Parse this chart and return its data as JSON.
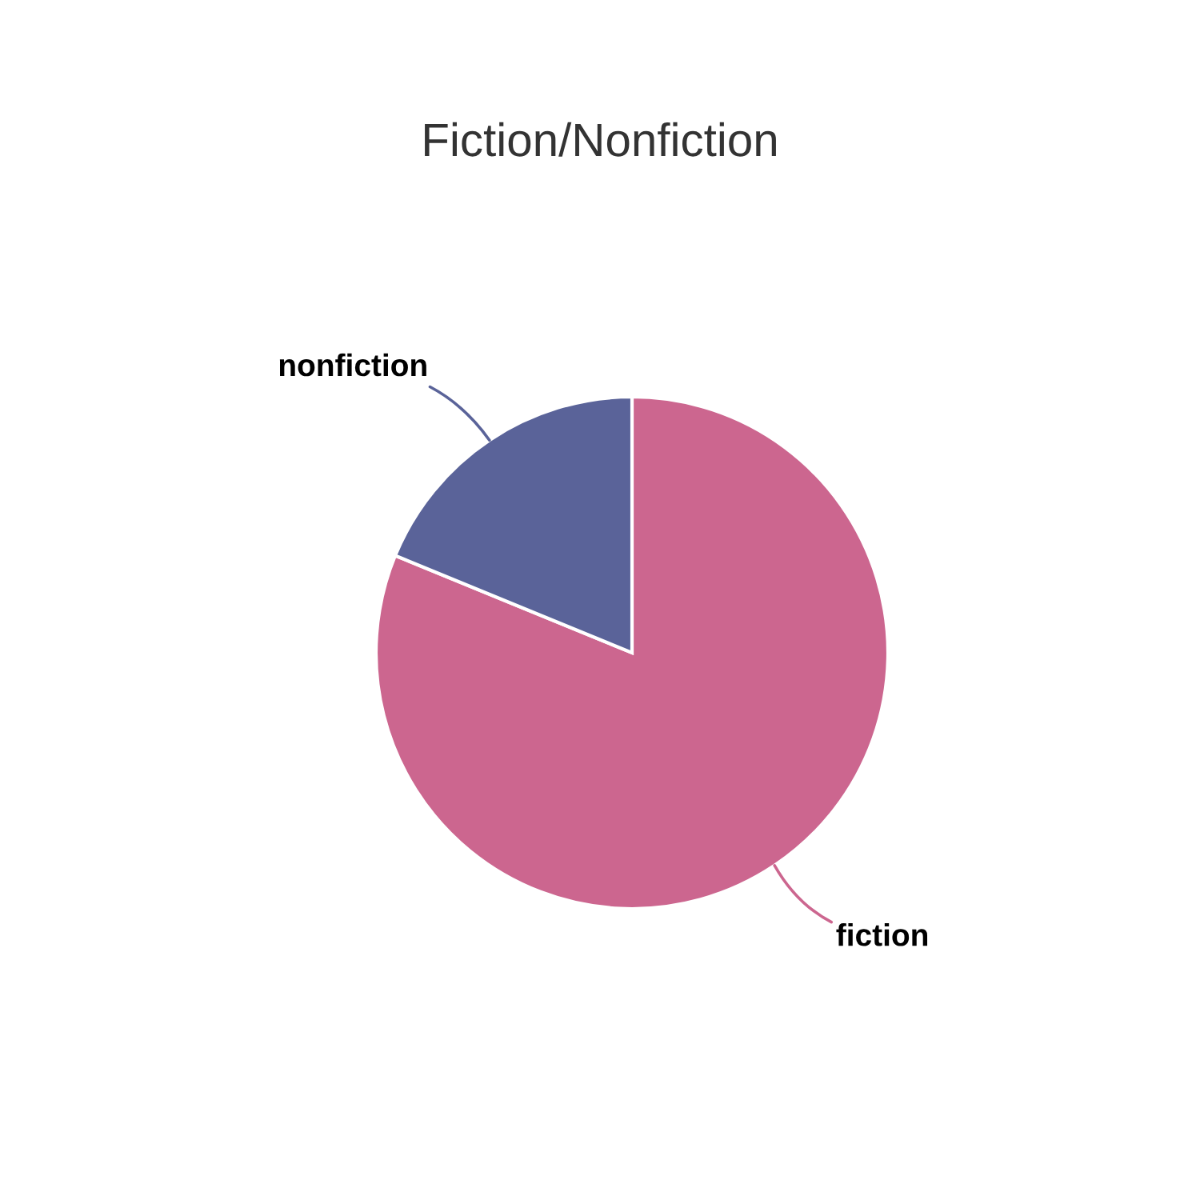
{
  "chart_data": {
    "type": "pie",
    "title": "Fiction/Nonfiction",
    "categories": [
      "fiction",
      "nonfiction"
    ],
    "values": [
      81.2,
      18.8
    ],
    "colors": [
      "#cc668f",
      "#5a6399"
    ]
  }
}
